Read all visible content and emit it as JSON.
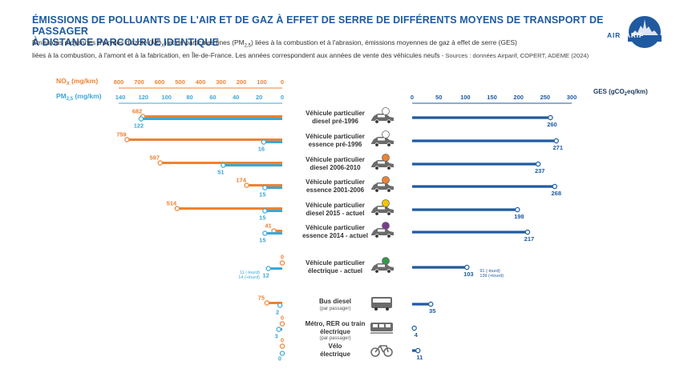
{
  "header": {
    "title_line1": "Émissions de polluants de l'air et de gaz à effet de serre de différents moyens de transport de passager",
    "title_line2": "à distance parcourue identique",
    "subtitle_a": "Émissions moyennes d'oxydes d'azote (NO",
    "subtitle_a_sub": "X",
    "subtitle_b": ") et de particules fines (PM",
    "subtitle_b_sub": "2,5",
    "subtitle_c": ") liées à la combustion et à l'abrasion, émissions moyennes de gaz à effet de serre (GES)",
    "subtitle_d": "liées à la combustion, à l'amont et à la fabrication, en Île-de-France. Les années correspondent  aux années de vente des véhicules neufs",
    "sources": " - Sources : données Airparif, COPERT, ADEME (2024)"
  },
  "logo": {
    "left": "AIR",
    "right": "PARIF",
    "color": "#1f5aa0"
  },
  "colors": {
    "nox": "#ee8232",
    "pm": "#3ca7d6",
    "ges": "#1f5aa0",
    "icon_bg": "#6b6b6b"
  },
  "chart_data": {
    "type": "bar",
    "categories": [
      {
        "line1": "Véhicule particulier",
        "line2": "diesel pré-1996",
        "sub": "",
        "icon": "car-icon",
        "badge": "#ffffff"
      },
      {
        "line1": "Véhicule particulier",
        "line2": "essence pré-1996",
        "sub": "",
        "icon": "car-icon",
        "badge": "#ffffff"
      },
      {
        "line1": "Véhicule particulier",
        "line2": "diesel 2006-2010",
        "sub": "",
        "icon": "car-icon",
        "badge": "#ee8232"
      },
      {
        "line1": "Véhicule particulier",
        "line2": "essence 2001-2006",
        "sub": "",
        "icon": "car-icon",
        "badge": "#ee8232"
      },
      {
        "line1": "Véhicule particulier",
        "line2": "diesel 2015 - actuel",
        "sub": "",
        "icon": "car-icon",
        "badge": "#f2c500"
      },
      {
        "line1": "Véhicule particulier",
        "line2": "essence 2014 - actuel",
        "sub": "",
        "icon": "car-icon",
        "badge": "#7c3b8f"
      },
      {
        "line1": "Véhicule particulier",
        "line2": "électrique - actuel",
        "sub": "",
        "icon": "electric-car-icon",
        "badge": "#2e9b48"
      },
      {
        "line1": "Bus diesel",
        "line2": "",
        "sub": "(par passager)",
        "icon": "bus-icon",
        "badge": ""
      },
      {
        "line1": "Métro, RER ou train",
        "line2": "électrique",
        "sub": "(par passager)",
        "icon": "train-icon",
        "badge": ""
      },
      {
        "line1": "Vélo",
        "line2": "électrique",
        "sub": "",
        "icon": "bike-icon",
        "badge": ""
      }
    ],
    "series": [
      {
        "name": "NOX (mg/km)",
        "unit": "mg/km",
        "values": [
          682,
          759,
          597,
          174,
          514,
          41,
          0,
          75,
          0,
          0
        ],
        "labels": [
          "682",
          "759",
          "597",
          "174",
          "514",
          "41",
          "0",
          "75",
          "0",
          "0"
        ]
      },
      {
        "name": "PM2,5 (mg/km)",
        "unit": "mg/km",
        "values": [
          122,
          16,
          51,
          15,
          15,
          15,
          12,
          2,
          3,
          0
        ],
        "labels": [
          "122",
          "16",
          "51",
          "15",
          "15",
          "15",
          "12",
          "2",
          "3",
          "0"
        ]
      },
      {
        "name": "GES (gCO2eq/km)",
        "unit": "gCO2eq/km",
        "values": [
          260,
          271,
          237,
          268,
          198,
          217,
          103,
          35,
          4,
          11
        ],
        "labels": [
          "260",
          "271",
          "237",
          "268",
          "198",
          "217",
          "103",
          "35",
          "4",
          "11"
        ]
      }
    ],
    "annotations": {
      "pm_electric": [
        "11 (-lourd)",
        "14 (+lourd)"
      ],
      "ges_electric": [
        "91 (-lourd)",
        "139 (+lourd)"
      ]
    },
    "axes": {
      "nox": {
        "label": "NO",
        "label_sub": "X",
        "label_unit": " (mg/km)",
        "ticks": [
          "800",
          "700",
          "600",
          "500",
          "400",
          "300",
          "200",
          "100",
          "0"
        ],
        "range": [
          0,
          800
        ]
      },
      "pm": {
        "label": "PM",
        "label_sub": "2,5",
        "label_unit": " (mg/km)",
        "ticks": [
          "140",
          "120",
          "100",
          "80",
          "60",
          "40",
          "20",
          "0"
        ],
        "range": [
          0,
          140
        ]
      },
      "ges": {
        "label": "GES (gCO",
        "label_sub": "2",
        "label_unit": "eq/km)",
        "ticks": [
          "0",
          "50",
          "100",
          "150",
          "200",
          "250",
          "300"
        ],
        "range": [
          0,
          300
        ]
      }
    }
  }
}
